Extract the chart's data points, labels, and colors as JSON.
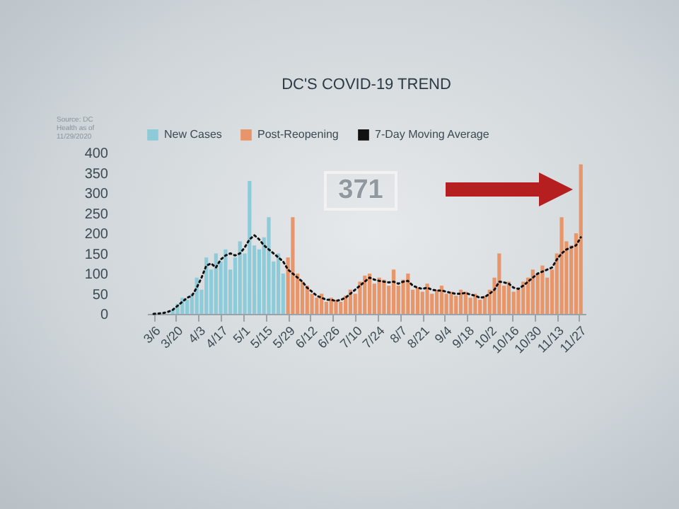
{
  "chart_data": {
    "type": "bar",
    "title": "DC'S COVID-19 TREND",
    "xlim": [
      "--03-02",
      "--12-01"
    ],
    "ylim": [
      0,
      400
    ],
    "yticks": [
      0,
      50,
      100,
      150,
      200,
      250,
      300,
      350,
      400
    ],
    "xticks": [
      {
        "value": "--03-06",
        "label": "3/6"
      },
      {
        "value": "--03-20",
        "label": "3/20"
      },
      {
        "value": "--04-03",
        "label": "4/3"
      },
      {
        "value": "--04-17",
        "label": "4/17"
      },
      {
        "value": "--05-01",
        "label": "5/1"
      },
      {
        "value": "--05-15",
        "label": "5/15"
      },
      {
        "value": "--05-29",
        "label": "5/29"
      },
      {
        "value": "--06-12",
        "label": "6/12"
      },
      {
        "value": "--06-26",
        "label": "6/26"
      },
      {
        "value": "--07-10",
        "label": "7/10"
      },
      {
        "value": "--07-24",
        "label": "7/24"
      },
      {
        "value": "--08-07",
        "label": "8/7"
      },
      {
        "value": "--08-21",
        "label": "8/21"
      },
      {
        "value": "--09-04",
        "label": "9/4"
      },
      {
        "value": "--09-18",
        "label": "9/18"
      },
      {
        "value": "--10-02",
        "label": "10/2"
      },
      {
        "value": "--10-16",
        "label": "10/16"
      },
      {
        "value": "--10-30",
        "label": "10/30"
      },
      {
        "value": "--11-13",
        "label": "11/13"
      },
      {
        "value": "--11-27",
        "label": "11/27"
      }
    ],
    "grid": false,
    "legend": "top",
    "annotations": [
      "371",
      "Source: DC Health as of 11/29/2020"
    ],
    "series": [
      {
        "name": "New Cases",
        "color": "#8ecbd8",
        "x": [
          "--03-06",
          "--03-09",
          "--03-12",
          "--03-15",
          "--03-18",
          "--03-21",
          "--03-24",
          "--03-27",
          "--03-30",
          "--04-02",
          "--04-05",
          "--04-08",
          "--04-11",
          "--04-14",
          "--04-17",
          "--04-20",
          "--04-23",
          "--04-26",
          "--04-29",
          "--05-02",
          "--05-05",
          "--05-08",
          "--05-11",
          "--05-14",
          "--05-17",
          "--05-20",
          "--05-23",
          "--05-26"
        ],
        "values": [
          0,
          0,
          null,
          null,
          10,
          25,
          40,
          35,
          50,
          90,
          60,
          140,
          110,
          150,
          130,
          160,
          110,
          140,
          180,
          150,
          330,
          170,
          160,
          190,
          240,
          130,
          150,
          100
        ]
      },
      {
        "name": "Post-Reopening",
        "color": "#e8956a",
        "x": [
          "--05-29",
          "--06-01",
          "--06-04",
          "--06-07",
          "--06-10",
          "--06-13",
          "--06-16",
          "--06-19",
          "--06-22",
          "--06-25",
          "--06-28",
          "--07-01",
          "--07-04",
          "--07-07",
          "--07-10",
          "--07-13",
          "--07-16",
          "--07-19",
          "--07-22",
          "--07-25",
          "--07-28",
          "--07-31",
          "--08-03",
          "--08-06",
          "--08-09",
          "--08-12",
          "--08-15",
          "--08-18",
          "--08-21",
          "--08-24",
          "--08-27",
          "--08-30",
          "--09-02",
          "--09-05",
          "--09-08",
          "--09-11",
          "--09-14",
          "--09-17",
          "--09-20",
          "--09-23",
          "--09-26",
          "--09-29",
          "--10-02",
          "--10-05",
          "--10-08",
          "--10-11",
          "--10-14",
          "--10-17",
          "--10-20",
          "--10-23",
          "--10-26",
          "--10-29",
          "--11-01",
          "--11-04",
          "--11-07",
          "--11-10",
          "--11-13",
          "--11-16",
          "--11-19",
          "--11-22",
          "--11-25",
          "--11-28"
        ],
        "values": [
          140,
          240,
          100,
          80,
          70,
          50,
          40,
          50,
          30,
          40,
          35,
          30,
          45,
          60,
          50,
          80,
          95,
          100,
          75,
          90,
          85,
          70,
          110,
          70,
          85,
          100,
          60,
          65,
          55,
          75,
          50,
          60,
          70,
          50,
          55,
          45,
          60,
          55,
          40,
          50,
          35,
          45,
          60,
          90,
          150,
          70,
          80,
          55,
          60,
          80,
          90,
          110,
          100,
          120,
          90,
          110,
          150,
          240,
          180,
          170,
          200,
          371
        ]
      },
      {
        "name": "7-Day Moving Average",
        "type": "line",
        "color": "#111111",
        "line_style": "dotted",
        "marker": "none",
        "x": [
          "--03-06",
          "--03-09",
          "--03-12",
          "--03-15",
          "--03-18",
          "--03-21",
          "--03-24",
          "--03-27",
          "--03-30",
          "--04-02",
          "--04-05",
          "--04-08",
          "--04-11",
          "--04-14",
          "--04-17",
          "--04-20",
          "--04-23",
          "--04-26",
          "--04-29",
          "--05-02",
          "--05-05",
          "--05-08",
          "--05-11",
          "--05-14",
          "--05-17",
          "--05-20",
          "--05-23",
          "--05-26",
          "--05-29",
          "--06-01",
          "--06-04",
          "--06-07",
          "--06-10",
          "--06-13",
          "--06-16",
          "--06-19",
          "--06-22",
          "--06-25",
          "--06-28",
          "--07-01",
          "--07-04",
          "--07-07",
          "--07-10",
          "--07-13",
          "--07-16",
          "--07-19",
          "--07-22",
          "--07-25",
          "--07-28",
          "--07-31",
          "--08-03",
          "--08-06",
          "--08-09",
          "--08-12",
          "--08-15",
          "--08-18",
          "--08-21",
          "--08-24",
          "--08-27",
          "--08-30",
          "--09-02",
          "--09-05",
          "--09-08",
          "--09-11",
          "--09-14",
          "--09-17",
          "--09-20",
          "--09-23",
          "--09-26",
          "--09-29",
          "--10-02",
          "--10-05",
          "--10-08",
          "--10-11",
          "--10-14",
          "--10-17",
          "--10-20",
          "--10-23",
          "--10-26",
          "--10-29",
          "--11-01",
          "--11-04",
          "--11-07",
          "--11-10",
          "--11-13",
          "--11-16",
          "--11-19",
          "--11-22",
          "--11-25",
          "--11-28"
        ],
        "values": [
          0,
          1,
          2,
          5,
          10,
          20,
          30,
          40,
          45,
          65,
          90,
          120,
          125,
          115,
          135,
          145,
          150,
          145,
          150,
          165,
          185,
          195,
          185,
          170,
          160,
          150,
          140,
          130,
          110,
          100,
          90,
          80,
          65,
          55,
          45,
          40,
          35,
          35,
          32,
          35,
          40,
          50,
          60,
          70,
          80,
          90,
          85,
          82,
          80,
          78,
          80,
          75,
          80,
          82,
          70,
          65,
          62,
          65,
          60,
          58,
          58,
          55,
          52,
          50,
          50,
          52,
          48,
          45,
          40,
          42,
          50,
          60,
          80,
          78,
          75,
          65,
          62,
          70,
          80,
          90,
          100,
          105,
          110,
          115,
          135,
          150,
          160,
          165,
          170,
          190
        ]
      }
    ]
  }
}
